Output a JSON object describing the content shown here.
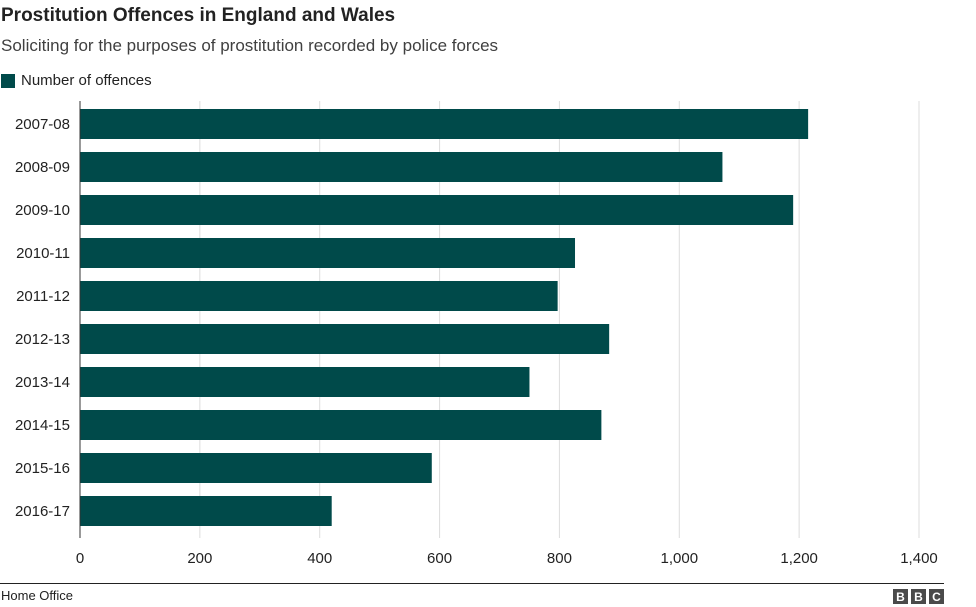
{
  "colors": {
    "bar": "#004a4a",
    "grid": "#dddddd",
    "text": "#222222"
  },
  "chart_data": {
    "type": "bar",
    "orientation": "horizontal",
    "title": "Prostitution Offences in England and Wales",
    "subtitle": "Soliciting for the purposes of prostitution recorded by police forces",
    "categories": [
      "2007-08",
      "2008-09",
      "2009-10",
      "2010-11",
      "2011-12",
      "2012-13",
      "2013-14",
      "2014-15",
      "2015-16",
      "2016-17"
    ],
    "series": [
      {
        "name": "Number of offences",
        "values": [
          1215,
          1072,
          1190,
          826,
          797,
          883,
          750,
          870,
          587,
          420
        ]
      }
    ],
    "xlim": [
      0,
      1400
    ],
    "ticks": [
      0,
      200,
      400,
      600,
      800,
      1000,
      1200,
      1400
    ],
    "tick_labels": [
      "0",
      "200",
      "400",
      "600",
      "800",
      "1,000",
      "1,200",
      "1,400"
    ],
    "grid": true,
    "legend": "top-left"
  },
  "footer": {
    "source": "Home Office",
    "logo": [
      "B",
      "B",
      "C"
    ]
  }
}
